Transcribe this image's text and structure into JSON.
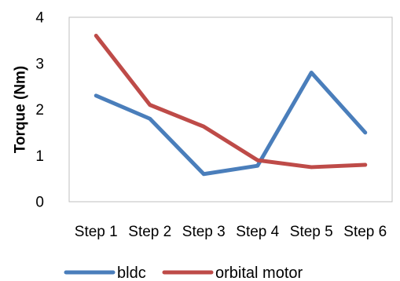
{
  "chart_data": {
    "type": "line",
    "title": "",
    "xlabel": "",
    "ylabel": "Torque (Nm)",
    "categories": [
      "Step 1",
      "Step 2",
      "Step 3",
      "Step 4",
      "Step 5",
      "Step 6"
    ],
    "ylim": [
      0,
      4
    ],
    "yticks": [
      0,
      1,
      2,
      3,
      4
    ],
    "grid": false,
    "legend_position": "bottom",
    "series": [
      {
        "name": "bldc",
        "color": "#4a7ebb",
        "values": [
          2.3,
          1.8,
          0.6,
          0.78,
          2.8,
          1.5
        ]
      },
      {
        "name": "orbital motor",
        "color": "#be4b48",
        "values": [
          3.6,
          2.1,
          1.63,
          0.9,
          0.75,
          0.8
        ]
      }
    ]
  }
}
